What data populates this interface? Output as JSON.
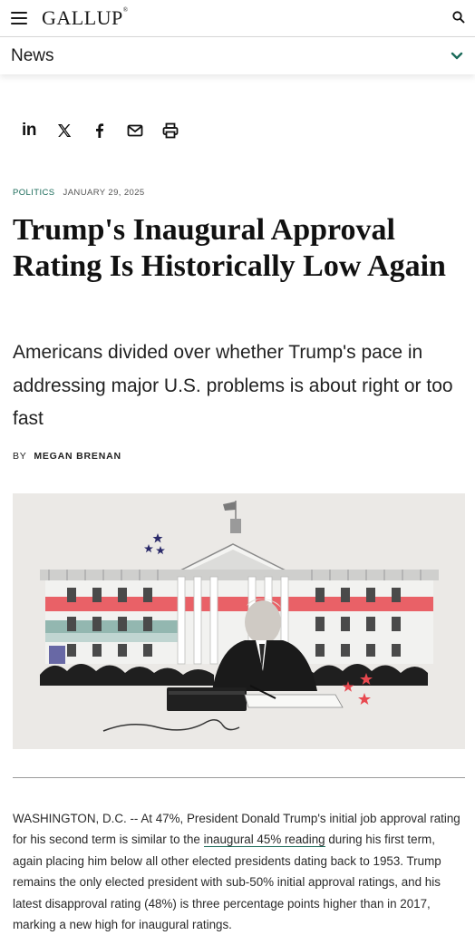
{
  "header": {
    "logo": "GALLUP",
    "logo_mark": "®",
    "menu_icon": "hamburger-menu-icon",
    "search_icon": "search-icon"
  },
  "section_bar": {
    "label": "News",
    "toggle_icon": "chevron-down-icon",
    "accent_color": "#1b6b5a"
  },
  "share": {
    "items": [
      {
        "icon": "linkedin-icon",
        "label": "in"
      },
      {
        "icon": "x-twitter-icon"
      },
      {
        "icon": "facebook-icon"
      },
      {
        "icon": "email-icon"
      },
      {
        "icon": "print-icon"
      }
    ]
  },
  "article": {
    "category": "POLITICS",
    "date": "JANUARY 29, 2025",
    "title": "Trump's Inaugural Approval Rating Is Historically Low Again",
    "subtitle": "Americans divided over whether Trump's pace in addressing major U.S. problems is about right or too fast",
    "byline_prefix": "BY",
    "author": "MEGAN BRENAN",
    "hero_image": "white-house-collage-illustration",
    "body_intro": "WASHINGTON, D.C. -- At 47%, President Donald Trump's initial job approval rating for his second term is similar to the ",
    "body_link": "inaugural 45% reading",
    "body_rest": " during his first term, again placing him below all other elected presidents dating back to 1953. Trump remains the only elected president with sub-50% initial approval ratings, and his latest disapproval rating (48%) is three percentage points higher than in 2017, marking a new high for inaugural ratings."
  },
  "colors": {
    "accent": "#1b6b5a",
    "flag_red": "#e8484f",
    "flag_blue": "#3a3a8c",
    "flag_teal": "#7aa7a0"
  }
}
